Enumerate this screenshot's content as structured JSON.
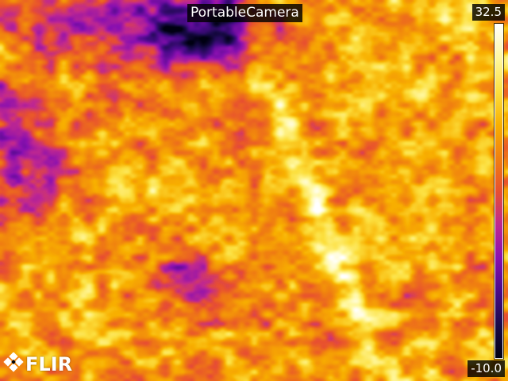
{
  "overlay": {
    "camera_name": "PortableCamera",
    "scale_max": "32.5",
    "scale_min": "-10.0",
    "brand": "FLIR"
  },
  "palette": {
    "name": "iron",
    "stops": [
      "#000012",
      "#1a0a4a",
      "#4a0a8a",
      "#8a10b0",
      "#c02890",
      "#e85030",
      "#f08010",
      "#f8b000",
      "#fce040",
      "#fff8a0",
      "#ffffff"
    ]
  },
  "icons": {
    "logo": "flir-diamond-icon"
  }
}
